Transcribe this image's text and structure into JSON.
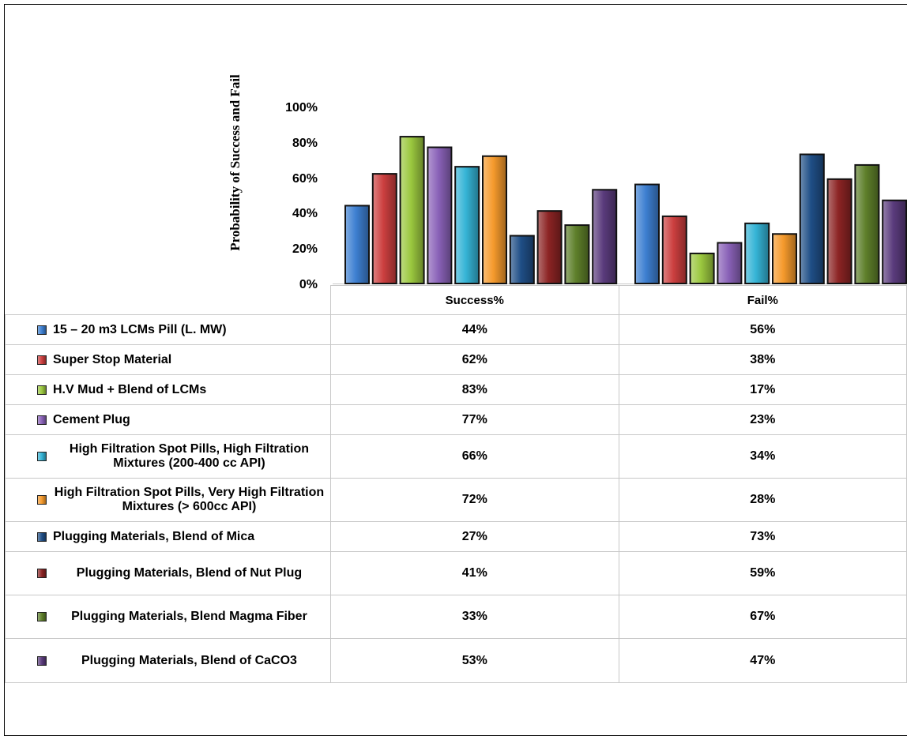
{
  "chart_data": {
    "type": "bar",
    "ylabel": "Probability of  Success and  Fail",
    "ylim": [
      0,
      100
    ],
    "y_ticks": [
      "0%",
      "20%",
      "40%",
      "60%",
      "80%",
      "100%"
    ],
    "categories": [
      "Success%",
      "Fail%"
    ],
    "series": [
      {
        "name": "15 – 20 m3 LCMs Pill (L. MW)",
        "color": "#3d7fd1",
        "values": [
          44,
          56
        ],
        "labels": [
          "44%",
          "56%"
        ]
      },
      {
        "name": "Super Stop Material",
        "color": "#cc3f3f",
        "values": [
          62,
          38
        ],
        "labels": [
          "62%",
          "38%"
        ]
      },
      {
        "name": "H.V Mud + Blend of LCMs",
        "color": "#9bc83f",
        "values": [
          83,
          17
        ],
        "labels": [
          "83%",
          "17%"
        ]
      },
      {
        "name": "Cement Plug",
        "color": "#8a62b8",
        "values": [
          77,
          23
        ],
        "labels": [
          "77%",
          "23%"
        ]
      },
      {
        "name": "High Filtration Spot Pills, High Filtration Mixtures (200-400 cc API)",
        "color": "#35b4d6",
        "values": [
          66,
          34
        ],
        "labels": [
          "66%",
          "34%"
        ]
      },
      {
        "name": "High Filtration Spot Pills, Very High Filtration Mixtures (> 600cc API)",
        "color": "#f59a2c",
        "values": [
          72,
          28
        ],
        "labels": [
          "72%",
          "28%"
        ]
      },
      {
        "name": "Plugging Materials,  Blend of Mica",
        "color": "#1f4e86",
        "values": [
          27,
          73
        ],
        "labels": [
          "27%",
          "73%"
        ]
      },
      {
        "name": "Plugging Materials, Blend of Nut Plug",
        "color": "#8c2424",
        "values": [
          41,
          59
        ],
        "labels": [
          "41%",
          "59%"
        ]
      },
      {
        "name": "Plugging Materials, Blend Magma Fiber",
        "color": "#5e7f2a",
        "values": [
          33,
          67
        ],
        "labels": [
          "33%",
          "67%"
        ]
      },
      {
        "name": "Plugging Materials,  Blend of CaCO3",
        "color": "#5a3b7c",
        "values": [
          53,
          47
        ],
        "labels": [
          "53%",
          "47%"
        ]
      }
    ]
  }
}
